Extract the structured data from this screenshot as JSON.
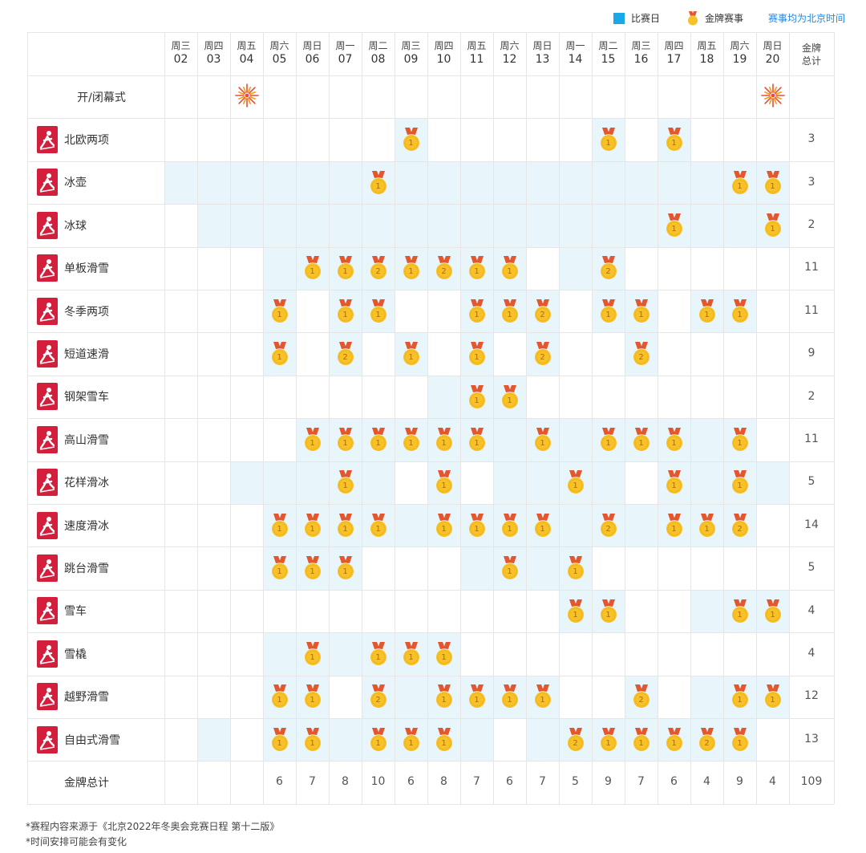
{
  "legend": {
    "competition_day": "比赛日",
    "gold_medal_event": "金牌赛事",
    "timezone_note": "赛事均为北京时间"
  },
  "colors": {
    "highlight": "#e8f5fb",
    "legend_blue": "#1ba8e8",
    "icon_red": "#d31e3c",
    "medal_gold": "#f7c12a",
    "ribbon": "#e4572e",
    "link": "#1e88e5"
  },
  "days": [
    {
      "weekday": "周三",
      "date": "02"
    },
    {
      "weekday": "周四",
      "date": "03"
    },
    {
      "weekday": "周五",
      "date": "04"
    },
    {
      "weekday": "周六",
      "date": "05"
    },
    {
      "weekday": "周日",
      "date": "06"
    },
    {
      "weekday": "周一",
      "date": "07"
    },
    {
      "weekday": "周二",
      "date": "08"
    },
    {
      "weekday": "周三",
      "date": "09"
    },
    {
      "weekday": "周四",
      "date": "10"
    },
    {
      "weekday": "周五",
      "date": "11"
    },
    {
      "weekday": "周六",
      "date": "12"
    },
    {
      "weekday": "周日",
      "date": "13"
    },
    {
      "weekday": "周一",
      "date": "14"
    },
    {
      "weekday": "周二",
      "date": "15"
    },
    {
      "weekday": "周三",
      "date": "16"
    },
    {
      "weekday": "周四",
      "date": "17"
    },
    {
      "weekday": "周五",
      "date": "18"
    },
    {
      "weekday": "周六",
      "date": "19"
    },
    {
      "weekday": "周日",
      "date": "20"
    }
  ],
  "total_header": "金牌\n总计",
  "ceremony": {
    "name": "开/闭幕式",
    "days": [
      2,
      18
    ]
  },
  "sports": [
    {
      "name": "北欧两项",
      "total": "3",
      "comp": [
        7,
        13,
        15
      ],
      "medals": [
        [
          7,
          1
        ],
        [
          13,
          1
        ],
        [
          15,
          1
        ]
      ]
    },
    {
      "name": "冰壶",
      "total": "3",
      "comp": [
        0,
        1,
        2,
        3,
        4,
        5,
        6,
        7,
        8,
        9,
        10,
        11,
        12,
        13,
        14,
        15,
        16,
        17,
        18
      ],
      "medals": [
        [
          6,
          1
        ],
        [
          17,
          1
        ],
        [
          18,
          1
        ]
      ]
    },
    {
      "name": "冰球",
      "total": "2",
      "comp": [
        1,
        2,
        3,
        4,
        5,
        6,
        7,
        8,
        9,
        10,
        11,
        12,
        13,
        14,
        15,
        16,
        17,
        18
      ],
      "medals": [
        [
          15,
          1
        ],
        [
          18,
          1
        ]
      ]
    },
    {
      "name": "单板滑雪",
      "total": "11",
      "comp": [
        3,
        4,
        5,
        6,
        7,
        8,
        9,
        10,
        12,
        13
      ],
      "medals": [
        [
          4,
          1
        ],
        [
          5,
          1
        ],
        [
          6,
          2
        ],
        [
          7,
          1
        ],
        [
          8,
          2
        ],
        [
          9,
          1
        ],
        [
          10,
          1
        ],
        [
          13,
          2
        ]
      ]
    },
    {
      "name": "冬季两项",
      "total": "11",
      "comp": [
        3,
        5,
        6,
        9,
        10,
        11,
        13,
        14,
        16,
        17
      ],
      "medals": [
        [
          3,
          1
        ],
        [
          5,
          1
        ],
        [
          6,
          1
        ],
        [
          9,
          1
        ],
        [
          10,
          1
        ],
        [
          11,
          2
        ],
        [
          13,
          1
        ],
        [
          14,
          1
        ],
        [
          16,
          1
        ],
        [
          17,
          1
        ]
      ]
    },
    {
      "name": "短道速滑",
      "total": "9",
      "comp": [
        3,
        5,
        7,
        9,
        11,
        14
      ],
      "medals": [
        [
          3,
          1
        ],
        [
          5,
          2
        ],
        [
          7,
          1
        ],
        [
          9,
          1
        ],
        [
          11,
          2
        ],
        [
          14,
          2
        ]
      ]
    },
    {
      "name": "钢架雪车",
      "total": "2",
      "comp": [
        8,
        9,
        10
      ],
      "medals": [
        [
          9,
          1
        ],
        [
          10,
          1
        ]
      ]
    },
    {
      "name": "高山滑雪",
      "total": "11",
      "comp": [
        4,
        5,
        6,
        7,
        8,
        9,
        10,
        11,
        12,
        13,
        14,
        15,
        16,
        17
      ],
      "medals": [
        [
          4,
          1
        ],
        [
          5,
          1
        ],
        [
          6,
          1
        ],
        [
          7,
          1
        ],
        [
          8,
          1
        ],
        [
          9,
          1
        ],
        [
          11,
          1
        ],
        [
          13,
          1
        ],
        [
          14,
          1
        ],
        [
          15,
          1
        ],
        [
          17,
          1
        ]
      ]
    },
    {
      "name": "花样滑冰",
      "total": "5",
      "comp": [
        2,
        3,
        4,
        5,
        6,
        8,
        10,
        11,
        12,
        13,
        15,
        16,
        17,
        18
      ],
      "medals": [
        [
          5,
          1
        ],
        [
          8,
          1
        ],
        [
          12,
          1
        ],
        [
          15,
          1
        ],
        [
          17,
          1
        ]
      ]
    },
    {
      "name": "速度滑冰",
      "total": "14",
      "comp": [
        3,
        4,
        5,
        6,
        7,
        8,
        9,
        10,
        11,
        12,
        13,
        14,
        15,
        16,
        17
      ],
      "medals": [
        [
          3,
          1
        ],
        [
          4,
          1
        ],
        [
          5,
          1
        ],
        [
          6,
          1
        ],
        [
          8,
          1
        ],
        [
          9,
          1
        ],
        [
          10,
          1
        ],
        [
          11,
          1
        ],
        [
          13,
          2
        ],
        [
          15,
          1
        ],
        [
          16,
          1
        ],
        [
          17,
          2
        ]
      ]
    },
    {
      "name": "跳台滑雪",
      "total": "5",
      "comp": [
        3,
        4,
        5,
        9,
        10,
        11,
        12
      ],
      "medals": [
        [
          3,
          1
        ],
        [
          4,
          1
        ],
        [
          5,
          1
        ],
        [
          10,
          1
        ],
        [
          12,
          1
        ]
      ]
    },
    {
      "name": "雪车",
      "total": "4",
      "comp": [
        12,
        13,
        16,
        17,
        18
      ],
      "medals": [
        [
          12,
          1
        ],
        [
          13,
          1
        ],
        [
          17,
          1
        ],
        [
          18,
          1
        ]
      ]
    },
    {
      "name": "雪橇",
      "total": "4",
      "comp": [
        3,
        4,
        5,
        6,
        7,
        8
      ],
      "medals": [
        [
          4,
          1
        ],
        [
          6,
          1
        ],
        [
          7,
          1
        ],
        [
          8,
          1
        ]
      ]
    },
    {
      "name": "越野滑雪",
      "total": "12",
      "comp": [
        3,
        4,
        6,
        7,
        8,
        9,
        10,
        11,
        14,
        16,
        17,
        18
      ],
      "medals": [
        [
          3,
          1
        ],
        [
          4,
          1
        ],
        [
          6,
          2
        ],
        [
          8,
          1
        ],
        [
          9,
          1
        ],
        [
          10,
          1
        ],
        [
          11,
          1
        ],
        [
          14,
          2
        ],
        [
          17,
          1
        ],
        [
          18,
          1
        ]
      ]
    },
    {
      "name": "自由式滑雪",
      "total": "13",
      "comp": [
        1,
        3,
        4,
        5,
        6,
        7,
        8,
        9,
        11,
        12,
        13,
        14,
        15,
        16,
        17
      ],
      "medals": [
        [
          3,
          1
        ],
        [
          4,
          1
        ],
        [
          6,
          1
        ],
        [
          7,
          1
        ],
        [
          8,
          1
        ],
        [
          12,
          2
        ],
        [
          13,
          1
        ],
        [
          14,
          1
        ],
        [
          15,
          1
        ],
        [
          16,
          2
        ],
        [
          17,
          1
        ]
      ]
    }
  ],
  "totals_row": {
    "label": "金牌总计",
    "values": [
      "",
      "",
      "",
      "6",
      "7",
      "8",
      "10",
      "6",
      "8",
      "7",
      "6",
      "7",
      "5",
      "9",
      "7",
      "6",
      "4",
      "9",
      "4"
    ],
    "grand_total": "109"
  },
  "footnotes": [
    "*赛程内容来源于《北京2022年冬奥会竞赛日程 第十二版》",
    "*时间安排可能会有变化"
  ]
}
